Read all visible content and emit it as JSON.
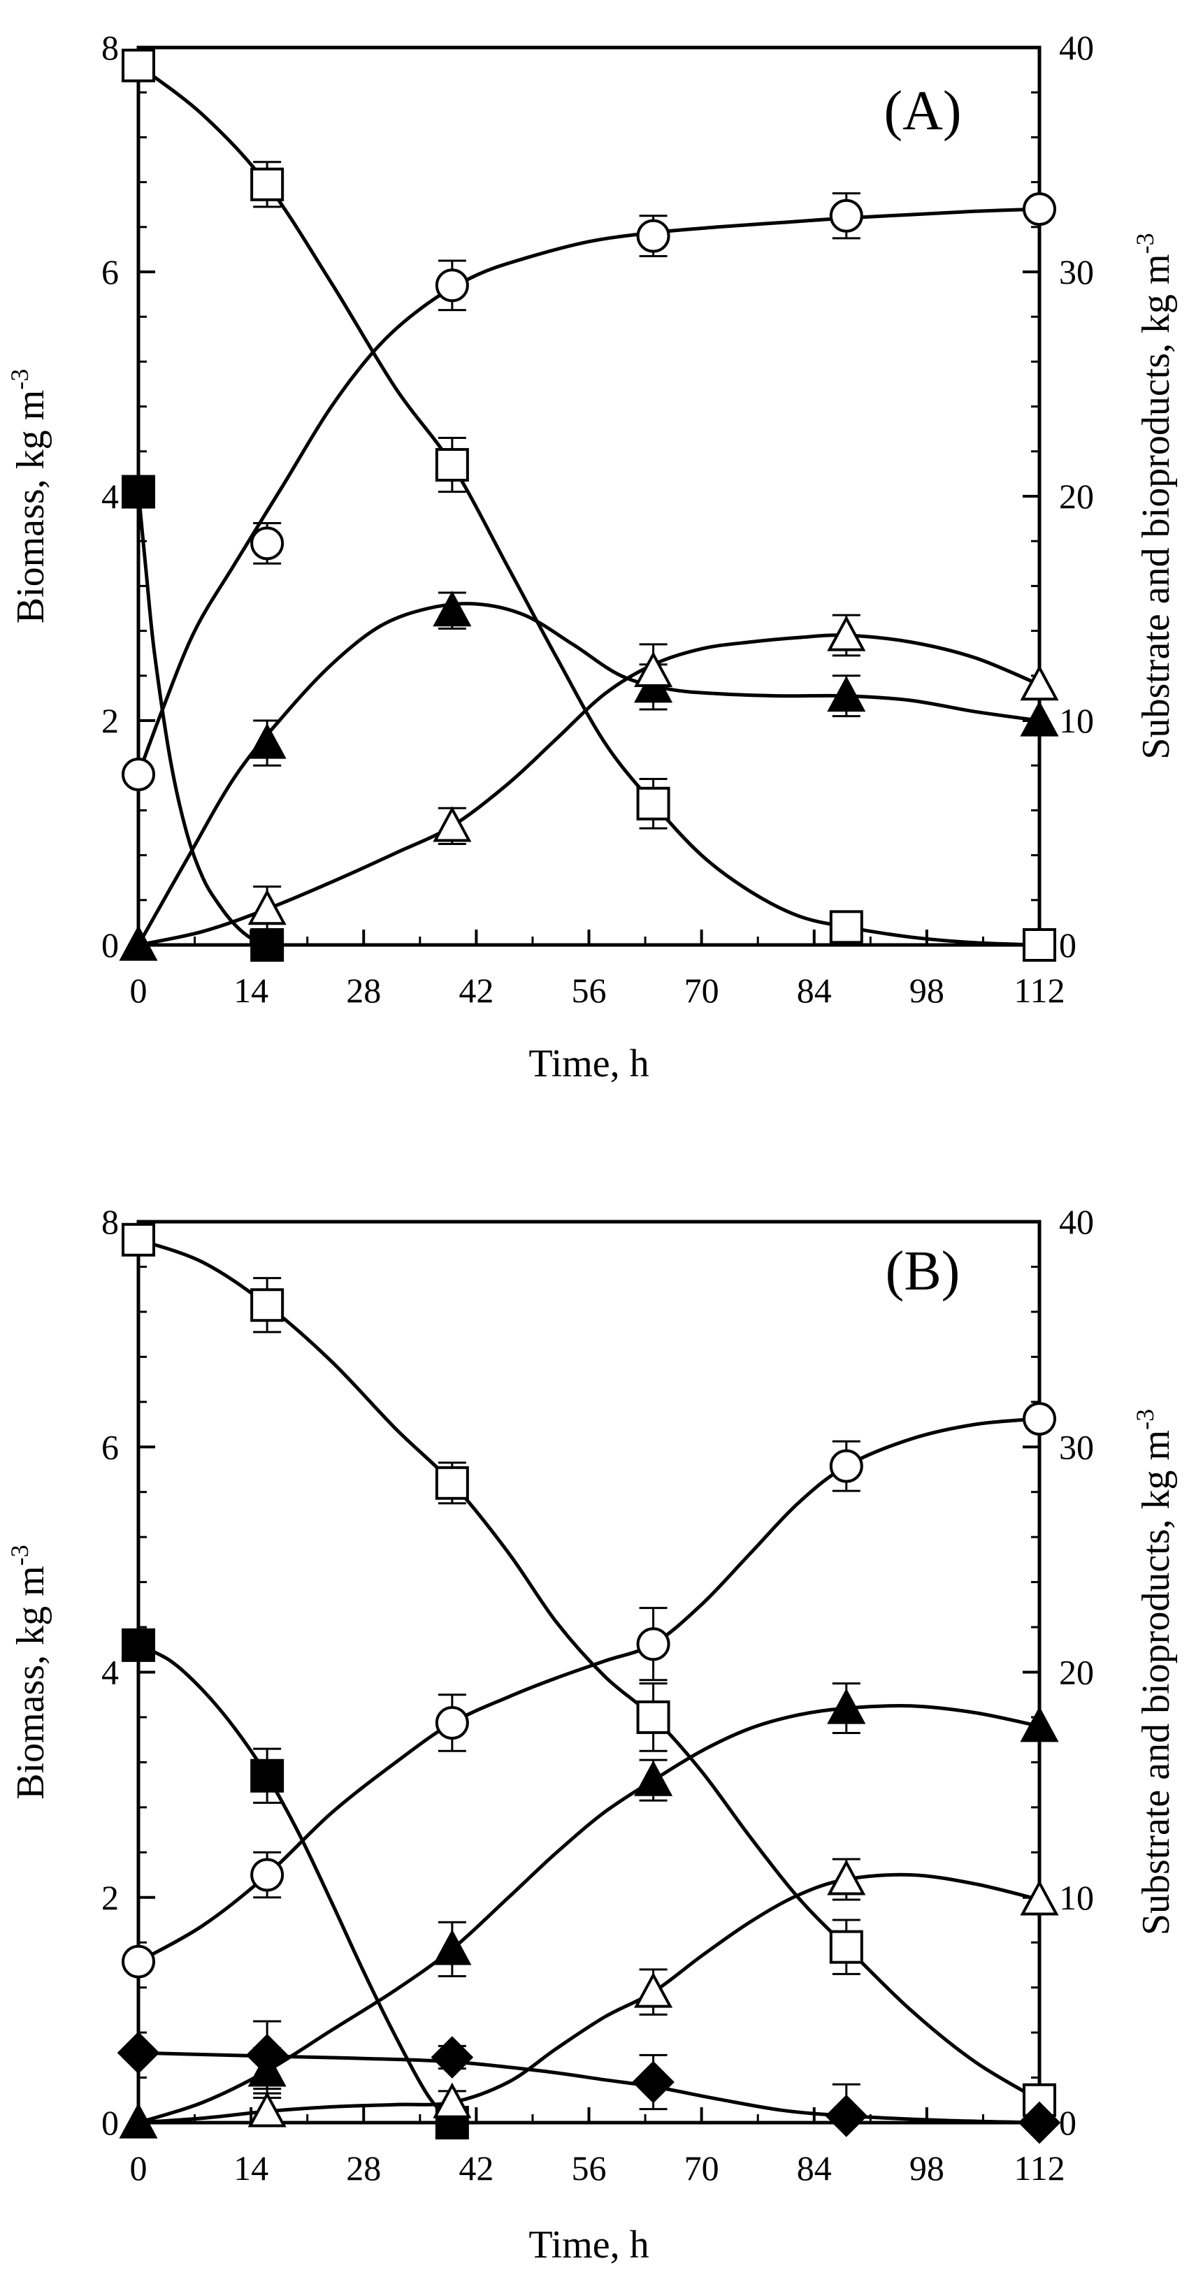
{
  "chart_data": [
    {
      "type": "line",
      "panel_label": "(A)",
      "xlabel": "Time, h",
      "ylabel_left": "Biomass, kg m",
      "ylabel_left_sup": "-3",
      "ylabel_right": "Substrate and bioproducts, kg m",
      "ylabel_right_sup": "-3",
      "xlim": [
        0,
        112
      ],
      "ylim_left": [
        0,
        8
      ],
      "ylim_right": [
        0,
        40
      ],
      "x_ticks": [
        0,
        14,
        28,
        42,
        56,
        70,
        84,
        98,
        112
      ],
      "y_left_ticks": [
        0,
        2,
        4,
        6,
        8
      ],
      "y_right_ticks": [
        0,
        10,
        20,
        30,
        40
      ],
      "series": [
        {
          "name": "biomass",
          "axis": "left",
          "marker": "circle-open",
          "x": [
            0,
            16,
            39,
            64,
            88,
            112
          ],
          "y": [
            1.52,
            3.58,
            5.88,
            6.32,
            6.5,
            6.56
          ],
          "err": [
            0,
            0.18,
            0.22,
            0.18,
            0.2,
            0
          ],
          "curve_x": [
            0,
            3,
            7,
            12,
            18,
            24,
            30,
            36,
            42,
            48,
            56,
            64,
            72,
            80,
            88,
            96,
            104,
            112
          ],
          "curve_y": [
            1.52,
            2.1,
            2.8,
            3.4,
            4.1,
            4.8,
            5.35,
            5.72,
            5.97,
            6.12,
            6.27,
            6.35,
            6.4,
            6.44,
            6.48,
            6.51,
            6.54,
            6.56
          ]
        },
        {
          "name": "substrate",
          "axis": "right",
          "marker": "square-open",
          "x": [
            0,
            16,
            39,
            64,
            88,
            112
          ],
          "y": [
            39.2,
            33.9,
            21.4,
            6.3,
            0.8,
            0
          ],
          "err": [
            0,
            1.0,
            1.2,
            1.1,
            0.6,
            0
          ],
          "curve_x": [
            0,
            8,
            16,
            24,
            32,
            39,
            46,
            52,
            58,
            64,
            70,
            76,
            82,
            88,
            96,
            104,
            112
          ],
          "curve_y": [
            39.2,
            37.0,
            33.9,
            29.5,
            24.8,
            21.4,
            16.8,
            12.8,
            9.0,
            6.3,
            4.0,
            2.4,
            1.3,
            0.8,
            0.35,
            0.1,
            0
          ]
        },
        {
          "name": "filled-square",
          "axis": "right",
          "marker": "square-filled",
          "x": [
            0,
            16
          ],
          "y": [
            20.2,
            0
          ],
          "err": [
            0,
            0
          ],
          "curve_x": [
            0,
            1,
            2,
            4,
            6,
            8,
            10,
            12,
            14,
            16
          ],
          "curve_y": [
            20.2,
            16.5,
            13.0,
            8.2,
            5.0,
            3.0,
            1.8,
            0.9,
            0.3,
            0
          ]
        },
        {
          "name": "filled-triangle",
          "axis": "right",
          "marker": "triangle-filled",
          "x": [
            0,
            16,
            39,
            64,
            88,
            112
          ],
          "y": [
            0,
            9.0,
            14.9,
            11.5,
            11.1,
            10.0
          ],
          "err": [
            0,
            1.0,
            0.8,
            1.0,
            0.9,
            0
          ],
          "curve_x": [
            0,
            6,
            12,
            18,
            24,
            30,
            36,
            42,
            48,
            54,
            60,
            66,
            72,
            80,
            88,
            96,
            104,
            112
          ],
          "curve_y": [
            0,
            3.8,
            7.5,
            10.2,
            12.5,
            14.2,
            15.0,
            15.2,
            14.7,
            13.4,
            12.0,
            11.4,
            11.2,
            11.1,
            11.1,
            10.9,
            10.4,
            10.0
          ]
        },
        {
          "name": "open-triangle",
          "axis": "right",
          "marker": "triangle-open",
          "x": [
            16,
            39,
            64,
            88,
            112
          ],
          "y": [
            1.6,
            5.3,
            12.2,
            13.8,
            11.6
          ],
          "err": [
            1.0,
            0.8,
            1.2,
            0.9,
            0
          ],
          "curve_x": [
            0,
            8,
            16,
            24,
            32,
            39,
            46,
            52,
            58,
            64,
            70,
            76,
            82,
            88,
            96,
            104,
            112
          ],
          "curve_y": [
            0,
            0.6,
            1.6,
            2.8,
            4.1,
            5.3,
            7.2,
            9.2,
            11.2,
            12.5,
            13.2,
            13.5,
            13.7,
            13.8,
            13.5,
            12.8,
            11.6
          ]
        }
      ]
    },
    {
      "type": "line",
      "panel_label": "(B)",
      "xlabel": "Time, h",
      "ylabel_left": "Biomass, kg m",
      "ylabel_left_sup": "-3",
      "ylabel_right": "Substrate and bioproducts, kg m",
      "ylabel_right_sup": "-3",
      "xlim": [
        0,
        112
      ],
      "ylim_left": [
        0,
        8
      ],
      "ylim_right": [
        0,
        40
      ],
      "x_ticks": [
        0,
        14,
        28,
        42,
        56,
        70,
        84,
        98,
        112
      ],
      "y_left_ticks": [
        0,
        2,
        4,
        6,
        8
      ],
      "y_right_ticks": [
        0,
        10,
        20,
        30,
        40
      ],
      "series": [
        {
          "name": "biomass",
          "axis": "left",
          "marker": "circle-open",
          "x": [
            0,
            16,
            39,
            64,
            88,
            112
          ],
          "y": [
            1.43,
            2.2,
            3.55,
            4.25,
            5.83,
            6.25
          ],
          "err": [
            0,
            0.2,
            0.25,
            0.32,
            0.22,
            0
          ],
          "curve_x": [
            0,
            8,
            16,
            24,
            32,
            39,
            46,
            52,
            58,
            64,
            70,
            76,
            82,
            88,
            96,
            104,
            112
          ],
          "curve_y": [
            1.43,
            1.75,
            2.2,
            2.75,
            3.2,
            3.55,
            3.78,
            3.95,
            4.1,
            4.25,
            4.6,
            5.05,
            5.5,
            5.83,
            6.07,
            6.2,
            6.25
          ]
        },
        {
          "name": "substrate",
          "axis": "right",
          "marker": "square-open",
          "x": [
            0,
            16,
            39,
            64,
            88,
            112
          ],
          "y": [
            39.2,
            36.3,
            28.4,
            18.0,
            7.8,
            1.0
          ],
          "err": [
            0,
            1.2,
            0.9,
            1.5,
            1.2,
            0
          ],
          "curve_x": [
            0,
            8,
            16,
            24,
            32,
            39,
            46,
            52,
            58,
            64,
            70,
            76,
            82,
            88,
            96,
            104,
            112
          ],
          "curve_y": [
            39.2,
            38.2,
            36.3,
            33.8,
            30.8,
            28.4,
            25.3,
            22.2,
            19.8,
            18.0,
            15.6,
            12.7,
            10.0,
            7.8,
            5.0,
            2.7,
            1.0
          ]
        },
        {
          "name": "filled-square",
          "axis": "right",
          "marker": "square-filled",
          "x": [
            0,
            16,
            39
          ],
          "y": [
            21.2,
            15.4,
            0
          ],
          "err": [
            0,
            1.2,
            0
          ],
          "curve_x": [
            0,
            4,
            8,
            12,
            16,
            20,
            24,
            28,
            32,
            36,
            39
          ],
          "curve_y": [
            21.2,
            20.5,
            19.2,
            17.5,
            15.4,
            12.8,
            9.8,
            6.7,
            3.8,
            1.2,
            0
          ]
        },
        {
          "name": "filled-triangle",
          "axis": "right",
          "marker": "triangle-filled",
          "x": [
            0,
            16,
            39,
            64,
            88,
            112
          ],
          "y": [
            0,
            2.3,
            7.7,
            15.2,
            18.4,
            17.6
          ],
          "err": [
            0,
            1.0,
            1.2,
            0.9,
            1.1,
            0
          ],
          "curve_x": [
            0,
            8,
            16,
            24,
            32,
            39,
            46,
            52,
            58,
            64,
            70,
            76,
            82,
            88,
            96,
            104,
            112
          ],
          "curve_y": [
            0,
            0.9,
            2.3,
            4.1,
            5.9,
            7.7,
            10.0,
            12.0,
            13.8,
            15.2,
            16.5,
            17.5,
            18.1,
            18.4,
            18.5,
            18.2,
            17.6
          ]
        },
        {
          "name": "open-triangle",
          "axis": "right",
          "marker": "triangle-open",
          "x": [
            16,
            39,
            64,
            88,
            112
          ],
          "y": [
            0.5,
            0.9,
            5.8,
            10.8,
            9.9
          ],
          "err": [
            0.6,
            0.5,
            1.0,
            0.9,
            0
          ],
          "curve_x": [
            0,
            8,
            16,
            24,
            32,
            39,
            46,
            52,
            58,
            64,
            70,
            76,
            82,
            88,
            96,
            104,
            112
          ],
          "curve_y": [
            0,
            0.2,
            0.5,
            0.7,
            0.8,
            0.9,
            1.8,
            3.3,
            4.7,
            5.8,
            7.4,
            8.9,
            10.1,
            10.8,
            11.0,
            10.6,
            9.9
          ]
        },
        {
          "name": "filled-diamond",
          "axis": "right",
          "marker": "diamond-filled",
          "x": [
            0,
            16,
            39,
            64,
            88,
            112
          ],
          "y": [
            3.1,
            3.0,
            2.9,
            1.8,
            0.3,
            0
          ],
          "err": [
            0,
            1.5,
            0.5,
            1.2,
            1.4,
            0
          ],
          "curve_x": [
            0,
            16,
            28,
            39,
            50,
            58,
            64,
            72,
            80,
            88,
            100,
            112
          ],
          "curve_y": [
            3.1,
            2.95,
            2.85,
            2.7,
            2.3,
            1.9,
            1.6,
            1.05,
            0.55,
            0.3,
            0.1,
            0
          ]
        }
      ]
    }
  ]
}
